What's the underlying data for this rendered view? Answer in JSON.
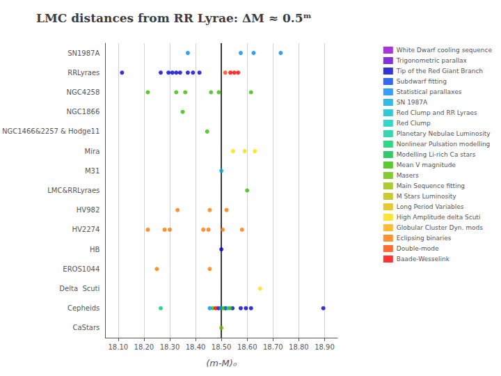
{
  "chart_data": {
    "type": "scatter",
    "title": "LMC distances from RR Lyrae: ΔM ≈ 0.5ᵐ",
    "xlabel": "(m-M)₀",
    "categories": [
      "SN1987A",
      "RRLyraes",
      "NGC4258",
      "NGC1866",
      "NGC1466&2257 & Hodge11",
      "Mira",
      "M31",
      "LMC&RRLyraes",
      "HV982",
      "HV2274",
      "HB",
      "EROS1044",
      "Delta  Scuti",
      "Cepheids",
      "CaStars"
    ],
    "xlim": [
      18.05,
      18.95
    ],
    "xticks": [
      {
        "value": 18.1,
        "label": "18.10"
      },
      {
        "value": 18.2,
        "label": "18.20"
      },
      {
        "value": 18.3,
        "label": "18.30"
      },
      {
        "value": 18.4,
        "label": "18.40"
      },
      {
        "value": 18.5,
        "label": "18.50"
      },
      {
        "value": 18.6,
        "label": "18.60"
      },
      {
        "value": 18.7,
        "label": "18.70"
      },
      {
        "value": 18.8,
        "label": "18.80"
      },
      {
        "value": 18.9,
        "label": "18.90"
      }
    ],
    "grid": true,
    "reference_line": {
      "x": 18.5,
      "color": "black"
    },
    "series": [
      {
        "name": "White Dwarf cooling sequence",
        "color": "#9400D3",
        "x": [],
        "y": []
      },
      {
        "name": "Trigonometric parallax",
        "color": "#6600CC",
        "x": [],
        "y": []
      },
      {
        "name": "Tip of the Red Giant Branch",
        "color": "#0000CC",
        "x": [
          18.115,
          18.265,
          18.295,
          18.31,
          18.325,
          18.34,
          18.37,
          18.39,
          18.415,
          18.5,
          18.489,
          18.516,
          18.543,
          18.575,
          18.595,
          18.615,
          18.895
        ],
        "y": [
          "RRLyraes",
          "RRLyraes",
          "RRLyraes",
          "RRLyraes",
          "RRLyraes",
          "RRLyraes",
          "RRLyraes",
          "RRLyraes",
          "RRLyraes",
          "HB",
          "Cepheids",
          "Cepheids",
          "Cepheids",
          "Cepheids",
          "Cepheids",
          "Cepheids",
          "Cepheids"
        ]
      },
      {
        "name": "Subdwarf fitting",
        "color": "#0044EE",
        "x": [],
        "y": []
      },
      {
        "name": "Statistical parallaxes",
        "color": "#0088FF",
        "x": [
          18.37,
          18.575,
          18.625,
          18.73,
          18.455,
          18.498
        ],
        "y": [
          "SN1987A",
          "SN1987A",
          "SN1987A",
          "SN1987A",
          "Cepheids",
          "Cepheids"
        ]
      },
      {
        "name": "SN 1987A",
        "color": "#00AADD",
        "x": [
          18.5
        ],
        "y": [
          "M31"
        ]
      },
      {
        "name": "Red Clump and RR Lyraes",
        "color": "#00BBCC",
        "x": [
          18.525
        ],
        "y": [
          "Cepheids"
        ]
      },
      {
        "name": "Red Clump",
        "color": "#00CCBB",
        "x": [],
        "y": []
      },
      {
        "name": "Planetary Nebulae Luminosity",
        "color": "#00CC99",
        "x": [],
        "y": []
      },
      {
        "name": "Nonlinear Pulsation modelling",
        "color": "#00CC66",
        "x": [
          18.265
        ],
        "y": [
          "Cepheids"
        ]
      },
      {
        "name": "Modelling Li-rich Ca stars",
        "color": "#00BB44",
        "x": [],
        "y": []
      },
      {
        "name": "Mean V magnitude",
        "color": "#33BB00",
        "x": [
          18.215,
          18.325,
          18.36,
          18.46,
          18.49,
          18.615,
          18.35,
          18.445,
          18.6,
          18.467,
          18.507,
          18.534
        ],
        "y": [
          "NGC4258",
          "NGC4258",
          "NGC4258",
          "NGC4258",
          "NGC4258",
          "NGC4258",
          "NGC1866",
          "NGC1466&2257 & Hodge11",
          "LMC&RRLyraes",
          "Cepheids",
          "Cepheids",
          "Cepheids"
        ]
      },
      {
        "name": "Masers",
        "color": "#66BB00",
        "x": [
          18.5
        ],
        "y": [
          "CaStars"
        ]
      },
      {
        "name": "Main Sequence fitting",
        "color": "#99BB00",
        "x": [],
        "y": []
      },
      {
        "name": "M Stars Luminosity",
        "color": "#BBBB00",
        "x": [],
        "y": []
      },
      {
        "name": "Long Period Variables",
        "color": "#DDBB00",
        "x": [],
        "y": []
      },
      {
        "name": "High Amplitude delta Scuti",
        "color": "#FFDD00",
        "x": [
          18.545,
          18.59,
          18.63,
          18.65
        ],
        "y": [
          "Mira",
          "Mira",
          "Mira",
          "Delta  Scuti"
        ]
      },
      {
        "name": "Globular Cluster Dyn. mods",
        "color": "#FFAA00",
        "x": [],
        "y": []
      },
      {
        "name": "Eclipsing binaries",
        "color": "#FF7700",
        "x": [
          18.33,
          18.455,
          18.52,
          18.215,
          18.28,
          18.3,
          18.43,
          18.45,
          18.505,
          18.58,
          18.25,
          18.455
        ],
        "y": [
          "HV982",
          "HV982",
          "HV982",
          "HV2274",
          "HV2274",
          "HV2274",
          "HV2274",
          "HV2274",
          "HV2274",
          "HV2274",
          "EROS1044",
          "EROS1044"
        ]
      },
      {
        "name": "Double-mode",
        "color": "#FF4400",
        "x": [
          18.515
        ],
        "y": [
          "RRLyraes"
        ]
      },
      {
        "name": "Baade-Wesselink",
        "color": "#FF0000",
        "x": [
          18.535,
          18.55,
          18.565,
          18.478
        ],
        "y": [
          "RRLyraes",
          "RRLyraes",
          "RRLyraes",
          "Cepheids"
        ]
      }
    ]
  }
}
